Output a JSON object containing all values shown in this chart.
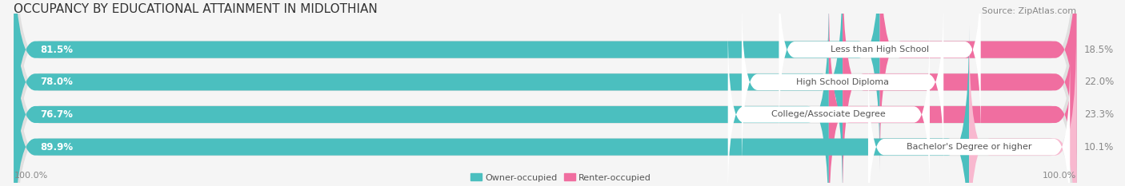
{
  "title": "OCCUPANCY BY EDUCATIONAL ATTAINMENT IN MIDLOTHIAN",
  "source": "Source: ZipAtlas.com",
  "categories": [
    "Less than High School",
    "High School Diploma",
    "College/Associate Degree",
    "Bachelor's Degree or higher"
  ],
  "owner_pct": [
    81.5,
    78.0,
    76.7,
    89.9
  ],
  "renter_pct": [
    18.5,
    22.0,
    23.3,
    10.1
  ],
  "owner_color": "#4BBFBF",
  "renter_color": "#F06EA0",
  "renter_light_color": "#F8B8CF",
  "background_bar": "#E8E8E8",
  "bar_bg_color": "#DCDCDC",
  "title_fontsize": 11,
  "label_fontsize": 8.5,
  "tick_fontsize": 8,
  "axis_label_left": "100.0%",
  "axis_label_right": "100.0%",
  "fig_width": 14.06,
  "fig_height": 2.33,
  "bar_height": 0.55
}
